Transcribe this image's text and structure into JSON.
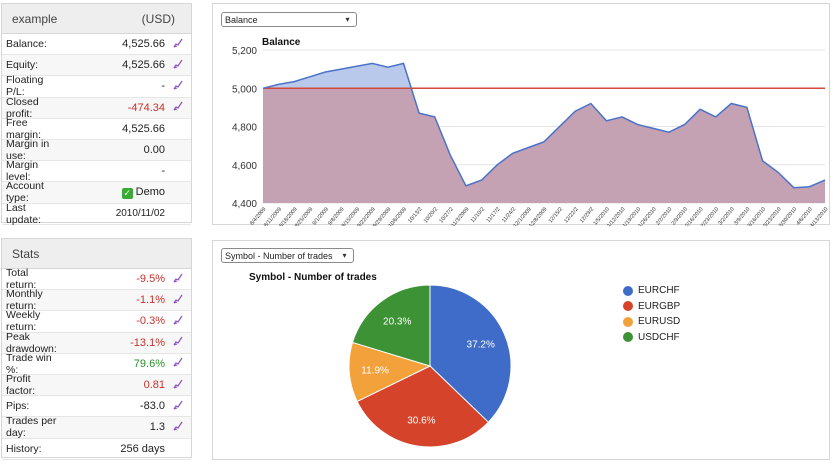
{
  "account": {
    "name": "example",
    "currency": "(USD)",
    "rows": [
      {
        "label": "Balance:",
        "value": "4,525.66",
        "tone": "",
        "editable": true
      },
      {
        "label": "Equity:",
        "value": "4,525.66",
        "tone": "",
        "editable": true
      },
      {
        "label": "Floating P/L:",
        "value": "-",
        "tone": "",
        "editable": true
      },
      {
        "label": "Closed profit:",
        "value": "-474.34",
        "tone": "neg",
        "editable": true
      },
      {
        "label": "Free margin:",
        "value": "4,525.66",
        "tone": "",
        "editable": false
      },
      {
        "label": "Margin in use:",
        "value": "0.00",
        "tone": "",
        "editable": false
      },
      {
        "label": "Margin level:",
        "value": "-",
        "tone": "",
        "editable": false
      },
      {
        "label": "Account type:",
        "value": "Demo",
        "tone": "",
        "editable": false,
        "check": true
      },
      {
        "label": "Last update:",
        "value": "2010/11/02",
        "tone": "",
        "editable": false,
        "small": true
      }
    ]
  },
  "stats": {
    "title": "Stats",
    "rows": [
      {
        "label": "Total return:",
        "value": "-9.5%",
        "tone": "neg",
        "editable": true
      },
      {
        "label": "Monthly return:",
        "value": "-1.1%",
        "tone": "neg",
        "editable": true
      },
      {
        "label": "Weekly return:",
        "value": "-0.3%",
        "tone": "neg",
        "editable": true
      },
      {
        "label": "Peak drawdown:",
        "value": "-13.1%",
        "tone": "neg",
        "editable": true
      },
      {
        "label": "Trade win %:",
        "value": "79.6%",
        "tone": "pos",
        "editable": true
      },
      {
        "label": "Profit factor:",
        "value": "0.81",
        "tone": "neg",
        "editable": true
      },
      {
        "label": "Pips:",
        "value": "-83.0",
        "tone": "",
        "editable": true
      },
      {
        "label": "Trades per day:",
        "value": "1.3",
        "tone": "",
        "editable": true
      },
      {
        "label": "History:",
        "value": "256 days",
        "tone": "",
        "editable": false
      }
    ]
  },
  "balance_panel": {
    "selector": "Balance"
  },
  "symbol_panel": {
    "selector": "Symbol - Number of trades"
  },
  "icons": {
    "edit": "pencil-chart-icon",
    "check": "checkbox-checked-icon",
    "dropdown": "chevron-down-icon"
  },
  "colors": {
    "above_start": "#b9c9ec",
    "below_start": "#e8b6a6",
    "line": "#4a72c8",
    "baseline": "#d24a3a",
    "negative": "#c8312b",
    "positive": "#2a8f2a"
  },
  "chart_data": [
    {
      "type": "area",
      "title": "Balance",
      "ylim": [
        4400,
        5200
      ],
      "yticks": [
        "4,400",
        "4,600",
        "4,800",
        "5,000",
        "5,200"
      ],
      "baseline": 5000,
      "x": [
        "8/4/2009",
        "8/11/2009",
        "8/18/2009",
        "8/25/2009",
        "9/1/2009",
        "9/8/2009",
        "9/15/2009",
        "9/22/2009",
        "9/29/2009",
        "10/6/2009",
        "10/13/2",
        "10/20/2",
        "10/27/2",
        "11/3/2009",
        "11/10/2",
        "11/17/2",
        "11/24/2",
        "12/1/2009",
        "12/8/2009",
        "12/15/2",
        "12/22/2",
        "12/29/2",
        "1/5/2010",
        "1/12/2010",
        "1/19/2010",
        "1/26/2010",
        "2/2/2010",
        "2/9/2010",
        "2/16/2010",
        "2/23/2010",
        "3/2/2010",
        "3/9/2010",
        "3/16/2010",
        "3/23/2010",
        "3/30/2010",
        "4/6/2010",
        "4/13/2010"
      ],
      "y": [
        5000,
        5020,
        5035,
        5060,
        5085,
        5100,
        5115,
        5130,
        5110,
        5130,
        4870,
        4850,
        4650,
        4490,
        4520,
        4600,
        4660,
        4690,
        4720,
        4800,
        4880,
        4920,
        4830,
        4850,
        4810,
        4790,
        4770,
        4810,
        4890,
        4850,
        4920,
        4900,
        4620,
        4560,
        4480,
        4485,
        4520
      ]
    },
    {
      "type": "pie",
      "title": "Symbol - Number of trades",
      "categories": [
        "EURCHF",
        "EURGBP",
        "EURUSD",
        "USDCHF"
      ],
      "values": [
        37.2,
        30.6,
        11.9,
        20.3
      ],
      "labels": [
        "37.2%",
        "30.6%",
        "11.9%",
        "20.3%"
      ],
      "colors": [
        "#3f6cc9",
        "#d4432a",
        "#f3a13a",
        "#3d9236"
      ]
    }
  ]
}
